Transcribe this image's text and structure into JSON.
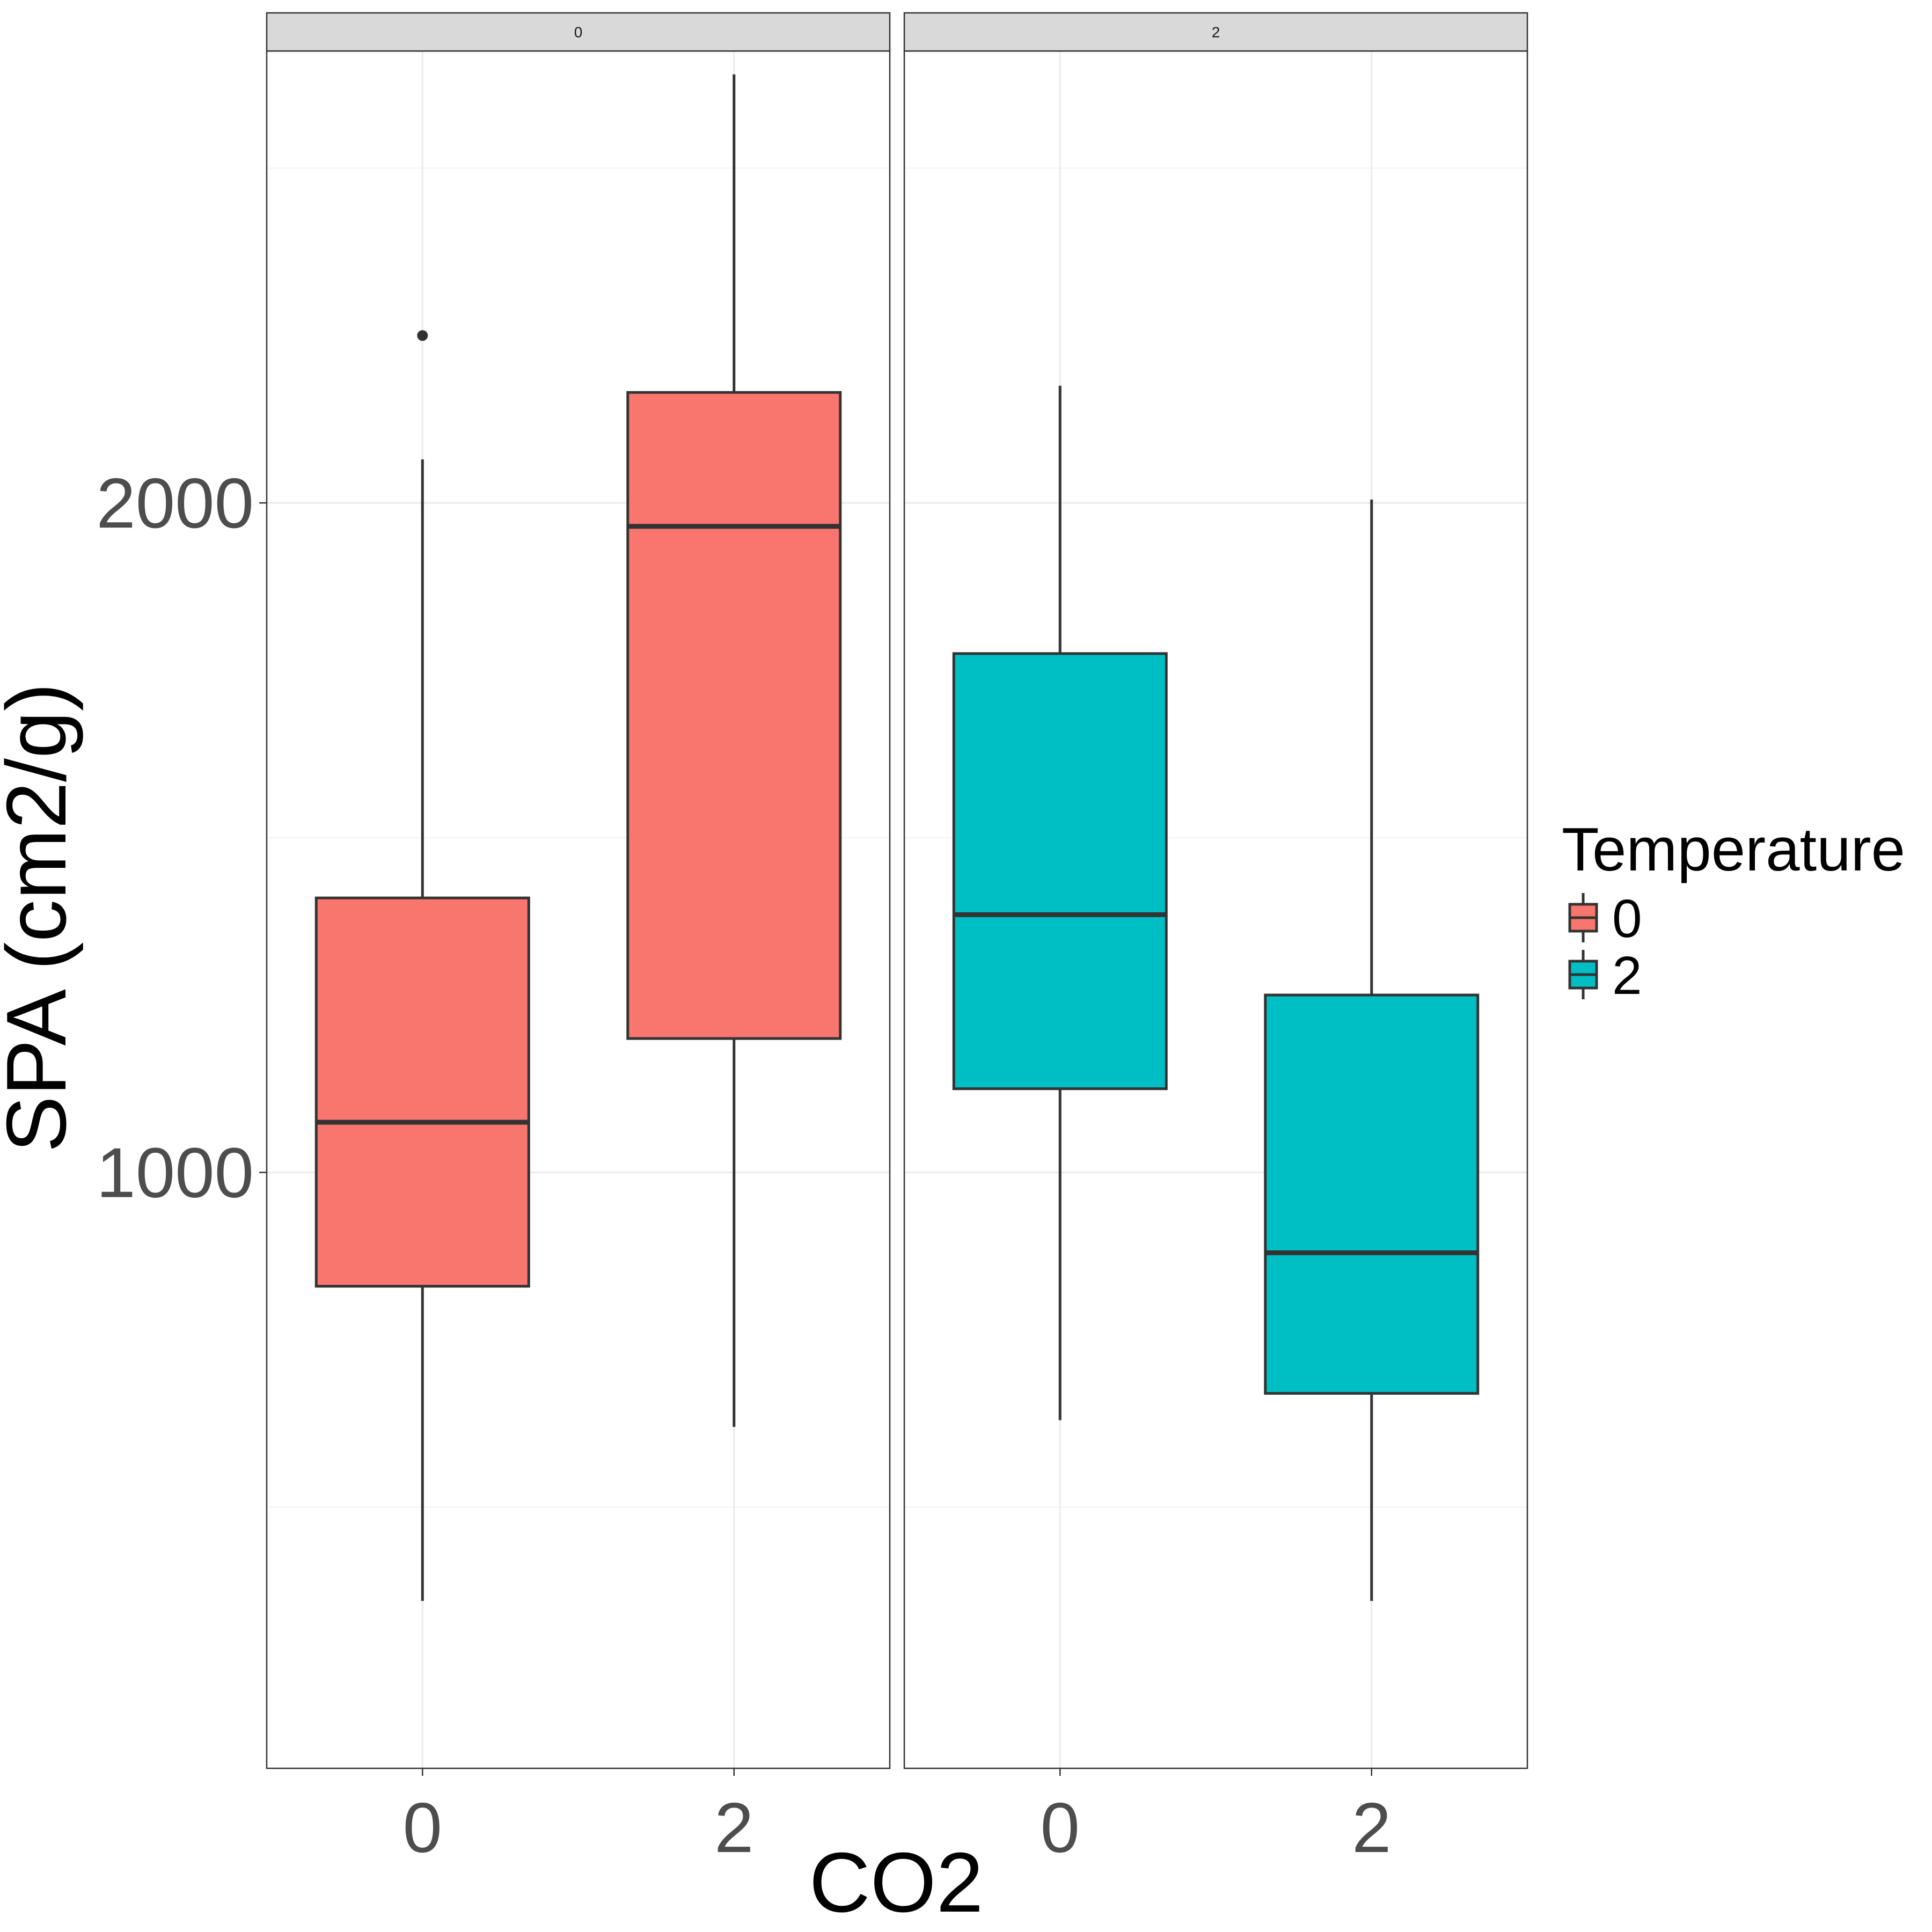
{
  "chart_data": {
    "type": "box",
    "title": "",
    "xlabel": "CO2",
    "ylabel": "SPA (cm2/g)",
    "ylim": [
      110,
      2675
    ],
    "y_ticks": [
      1000,
      2000
    ],
    "y_minor_ticks": [
      500,
      1500,
      2500
    ],
    "facet_variable": "Temperature",
    "legend": {
      "title": "Temperature",
      "position": "right",
      "entries": [
        {
          "label": "0",
          "color": "#F8766D"
        },
        {
          "label": "2",
          "color": "#00BFC4"
        }
      ]
    },
    "panels": [
      {
        "strip": "0",
        "color": "#F8766D",
        "categories": [
          "0",
          "2"
        ],
        "boxes": [
          {
            "x": "0",
            "ymin": 360,
            "q1": 830,
            "median": 1075,
            "q3": 1410,
            "ymax": 2065,
            "outliers": [
              2250
            ]
          },
          {
            "x": "2",
            "ymin": 620,
            "q1": 1200,
            "median": 1965,
            "q3": 2165,
            "ymax": 2640,
            "outliers": []
          }
        ]
      },
      {
        "strip": "2",
        "color": "#00BFC4",
        "categories": [
          "0",
          "2"
        ],
        "boxes": [
          {
            "x": "0",
            "ymin": 630,
            "q1": 1125,
            "median": 1385,
            "q3": 1775,
            "ymax": 2175,
            "outliers": []
          },
          {
            "x": "2",
            "ymin": 360,
            "q1": 670,
            "median": 880,
            "q3": 1265,
            "ymax": 2005,
            "outliers": []
          }
        ]
      }
    ]
  }
}
